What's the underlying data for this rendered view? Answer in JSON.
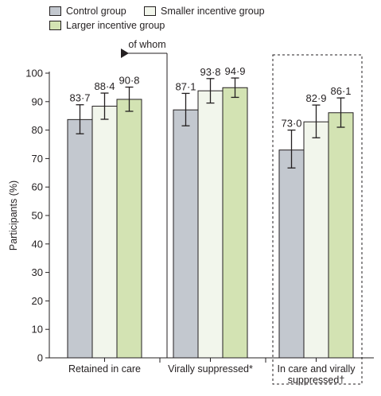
{
  "legend": [
    {
      "label": "Control group",
      "color": "#c3c8cf"
    },
    {
      "label": "Smaller incentive group",
      "color": "#f2f6ec"
    },
    {
      "label": "Larger incentive group",
      "color": "#d3e3b3"
    }
  ],
  "annotation": "of whom",
  "chart_data": {
    "type": "bar",
    "ylabel": "Participants (%)",
    "ylim": [
      0,
      100
    ],
    "yticks": [
      0,
      10,
      20,
      30,
      40,
      50,
      60,
      70,
      80,
      90,
      100
    ],
    "categories": [
      [
        "Retained in care"
      ],
      [
        "Virally suppressed*"
      ],
      [
        "In care and virally",
        "suppressed†"
      ]
    ],
    "series": [
      {
        "name": "Control group",
        "color": "#c3c8cf",
        "values": [
          83.7,
          87.1,
          73.0
        ],
        "labels": [
          "83·7",
          "87·1",
          "73·0"
        ],
        "ci_low": [
          78.7,
          81.5,
          66.7
        ],
        "ci_high": [
          88.9,
          92.9,
          80.0
        ]
      },
      {
        "name": "Smaller incentive group",
        "color": "#f2f6ec",
        "values": [
          88.4,
          93.8,
          82.9
        ],
        "labels": [
          "88·4",
          "93·8",
          "82·9"
        ],
        "ci_low": [
          83.8,
          89.5,
          77.3
        ],
        "ci_high": [
          93.0,
          98.1,
          88.8
        ]
      },
      {
        "name": "Larger incentive group",
        "color": "#d3e3b3",
        "values": [
          90.8,
          94.9,
          86.1
        ],
        "labels": [
          "90·8",
          "94·9",
          "86·1"
        ],
        "ci_low": [
          86.6,
          91.5,
          81.0
        ],
        "ci_high": [
          95.1,
          98.3,
          91.3
        ]
      }
    ],
    "legend_position": "top-left",
    "grid": false
  }
}
